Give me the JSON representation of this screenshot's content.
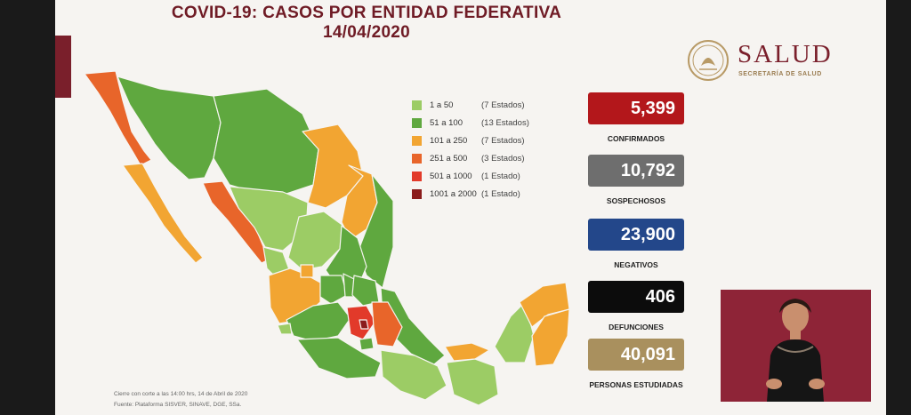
{
  "title": {
    "line1": "COVID-19: CASOS POR ENTIDAD FEDERATIVA",
    "line2": "14/04/2020"
  },
  "logo": {
    "wordmark": "SALUD",
    "subtitle": "SECRETARÍA DE SALUD"
  },
  "legend": [
    {
      "range": "1 a 50",
      "count": "(7 Estados)",
      "color": "#9ccc65"
    },
    {
      "range": "51 a 100",
      "count": "(13 Estados)",
      "color": "#5fa83f"
    },
    {
      "range": "101 a 250",
      "count": "(7 Estados)",
      "color": "#f2a532"
    },
    {
      "range": "251 a 500",
      "count": "(3 Estados)",
      "color": "#e8652a"
    },
    {
      "range": "501 a 1000",
      "count": "(1 Estado)",
      "color": "#e23a2a"
    },
    {
      "range": "1001 a 2000",
      "count": "(1 Estado)",
      "color": "#8b1c1c"
    }
  ],
  "stats": [
    {
      "value": "5,399",
      "label": "CONFIRMADOS",
      "color": "#b3171b"
    },
    {
      "value": "10,792",
      "label": "SOSPECHOSOS",
      "color": "#6e6e6e"
    },
    {
      "value": "23,900",
      "label": "NEGATIVOS",
      "color": "#23478a"
    },
    {
      "value": "406",
      "label": "DEFUNCIONES",
      "color": "#0c0c0c"
    },
    {
      "value": "40,091",
      "label": "PERSONAS ESTUDIADAS",
      "color": "#a9905e"
    }
  ],
  "footnote": {
    "cutoff": "Cierre con corte a las 14:00 hrs, 14 de Abril de 2020",
    "source": "Fuente: Plataforma SISVER, SINAVE, DGE, SSa."
  }
}
